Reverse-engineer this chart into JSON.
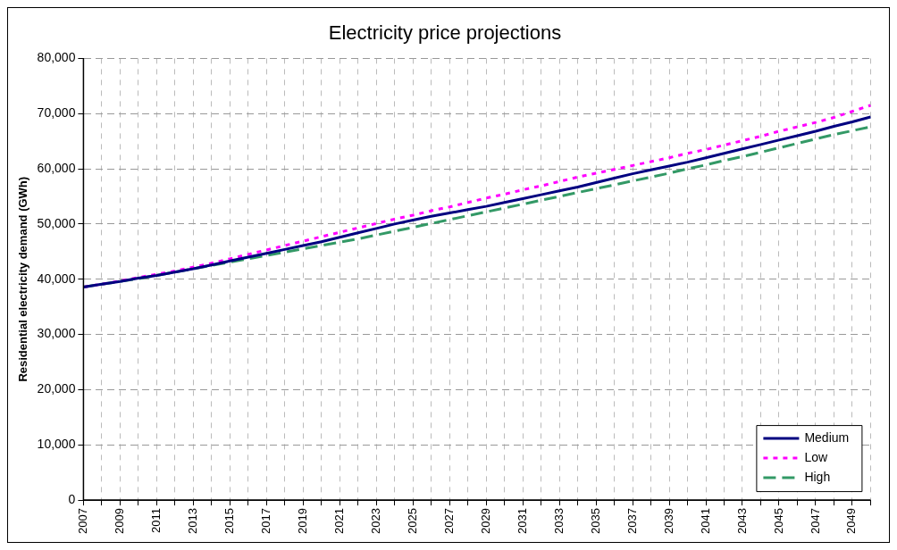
{
  "chart_data": {
    "type": "line",
    "title": "Electricity price projections",
    "ylabel": "Residential electricity demand (GWh)",
    "categories": [
      "2007",
      null,
      "2009",
      null,
      "2011",
      null,
      "2013",
      null,
      "2015",
      null,
      "2017",
      null,
      "2019",
      null,
      "2021",
      null,
      "2023",
      null,
      "2025",
      null,
      "2027",
      null,
      "2029",
      null,
      "2031",
      null,
      "2033",
      null,
      "2035",
      null,
      "2037",
      null,
      "2039",
      null,
      "2041",
      null,
      "2043",
      null,
      "2045",
      null,
      "2047",
      null,
      "2049",
      null
    ],
    "series": [
      {
        "name": "Medium",
        "color": "#000080",
        "line_style": "solid",
        "values": [
          38600,
          39100,
          39600,
          40200,
          40700,
          41300,
          41900,
          42600,
          43300,
          44000,
          44700,
          45400,
          46100,
          46800,
          47600,
          48400,
          49200,
          50000,
          50700,
          51400,
          52000,
          52600,
          53200,
          53900,
          54600,
          55300,
          56000,
          56700,
          57500,
          58300,
          59100,
          59800,
          60500,
          61200,
          62000,
          62800,
          63600,
          64400,
          65200,
          66000,
          66800,
          67700,
          68500,
          69400
        ]
      },
      {
        "name": "Low",
        "color": "#ff00ff",
        "line_style": "dotted",
        "values": [
          38600,
          39100,
          39700,
          40300,
          40900,
          41500,
          42200,
          42900,
          43700,
          44500,
          45300,
          46100,
          46900,
          47700,
          48500,
          49300,
          50100,
          50900,
          51600,
          52400,
          53100,
          53900,
          54700,
          55400,
          56200,
          56900,
          57700,
          58500,
          59200,
          59900,
          60600,
          61300,
          62000,
          62800,
          63500,
          64300,
          65100,
          65900,
          66800,
          67600,
          68400,
          69300,
          70400,
          71500
        ]
      },
      {
        "name": "High",
        "color": "#339966",
        "line_style": "dashed",
        "values": [
          38600,
          39100,
          39600,
          40100,
          40700,
          41300,
          41900,
          42500,
          43100,
          43700,
          44300,
          44900,
          45500,
          46100,
          46700,
          47300,
          48000,
          48700,
          49400,
          50100,
          50800,
          51500,
          52200,
          52900,
          53600,
          54300,
          55000,
          55700,
          56400,
          57100,
          57800,
          58500,
          59200,
          60000,
          60700,
          61500,
          62200,
          63000,
          63800,
          64600,
          65400,
          66200,
          66900,
          67600
        ]
      }
    ],
    "ylim": [
      0,
      80000
    ],
    "yticks": [
      {
        "value": 0,
        "label": "0"
      },
      {
        "value": 10000,
        "label": "10,000"
      },
      {
        "value": 20000,
        "label": "20,000"
      },
      {
        "value": 30000,
        "label": "30,000"
      },
      {
        "value": 40000,
        "label": "40,000"
      },
      {
        "value": 50000,
        "label": "50,000"
      },
      {
        "value": 60000,
        "label": "60,000"
      },
      {
        "value": 70000,
        "label": "70,000"
      },
      {
        "value": 80000,
        "label": "80,000"
      }
    ],
    "grid": true,
    "legend": "bottom right",
    "marker": "none"
  }
}
